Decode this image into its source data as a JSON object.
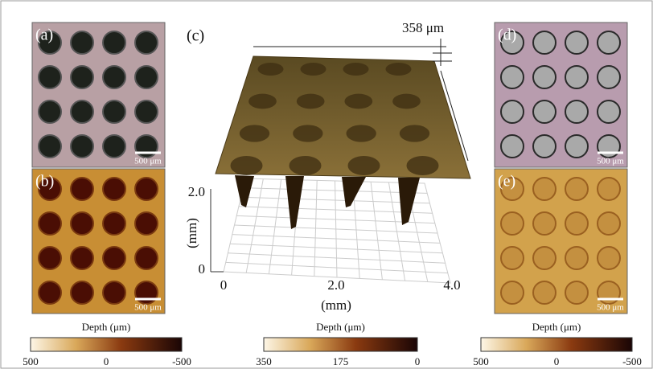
{
  "panels": [
    {
      "label": "(a)",
      "scale_bar": "500 μm"
    },
    {
      "label": "(b)",
      "scale_bar": "500 μm"
    },
    {
      "label": "(c)",
      "height_label": "358 μm",
      "z_axis": {
        "label": "(mm)",
        "ticks": [
          "0",
          "2.0"
        ]
      },
      "x_axis": {
        "label": "(mm)",
        "ticks": [
          "0",
          "2.0",
          "4.0"
        ]
      }
    },
    {
      "label": "(d)",
      "scale_bar": "500 μm"
    },
    {
      "label": "(e)",
      "scale_bar": "500 μm"
    }
  ],
  "colorbars": [
    {
      "title": "Depth (μm)",
      "ticks": [
        "500",
        "0",
        "-500"
      ]
    },
    {
      "title": "Depth (μm)",
      "ticks": [
        "350",
        "175",
        "0"
      ]
    },
    {
      "title": "Depth (μm)",
      "ticks": [
        "500",
        "0",
        "-500"
      ]
    }
  ]
}
